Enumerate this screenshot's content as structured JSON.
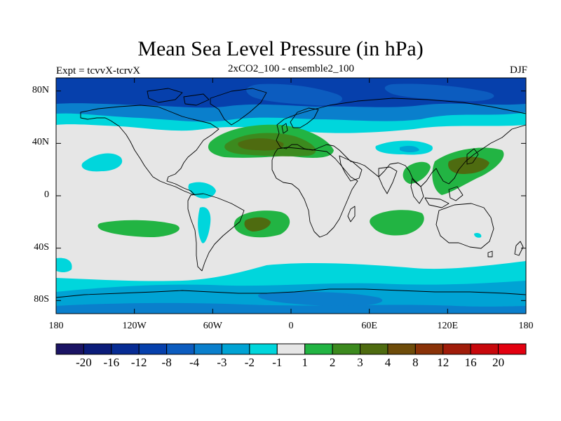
{
  "title": "Mean Sea Level Pressure (in hPa)",
  "subtitle_left": "Expt = tcvvX-tcrvX",
  "subtitle_center": "2xCO2_100 - ensemble2_100",
  "subtitle_right": "DJF",
  "map": {
    "projection": "cylindrical equidistant",
    "lon_range": [
      -180,
      180
    ],
    "lat_range": [
      -90,
      90
    ],
    "lat_ticks": [
      {
        "lat": 80,
        "label": "80N"
      },
      {
        "lat": 40,
        "label": "40N"
      },
      {
        "lat": 0,
        "label": "0"
      },
      {
        "lat": -40,
        "label": "40S"
      },
      {
        "lat": -80,
        "label": "80S"
      }
    ],
    "lon_ticks": [
      {
        "lon": -180,
        "label": "180"
      },
      {
        "lon": -120,
        "label": "120W"
      },
      {
        "lon": -60,
        "label": "60W"
      },
      {
        "lon": 0,
        "label": "0"
      },
      {
        "lon": 60,
        "label": "60E"
      },
      {
        "lon": 120,
        "label": "120E"
      },
      {
        "lon": 180,
        "label": "180"
      }
    ],
    "background_color": "#e6e6e6",
    "coastline_color": "#000000"
  },
  "colorbar": {
    "colors": [
      "#1b1464",
      "#0b1c7a",
      "#072c94",
      "#0640ac",
      "#0c5cbf",
      "#0a7fcc",
      "#00a3d4",
      "#00d6dc",
      "#e6e6e6",
      "#22b443",
      "#3c8a1e",
      "#4e6b10",
      "#6e4c0a",
      "#8a3208",
      "#a01c0a",
      "#c8080c",
      "#e30010"
    ],
    "labels": [
      "-20",
      "-16",
      "-12",
      "-8",
      "-4",
      "-3",
      "-2",
      "-1",
      "1",
      "2",
      "3",
      "4",
      "8",
      "12",
      "16",
      "20"
    ]
  }
}
